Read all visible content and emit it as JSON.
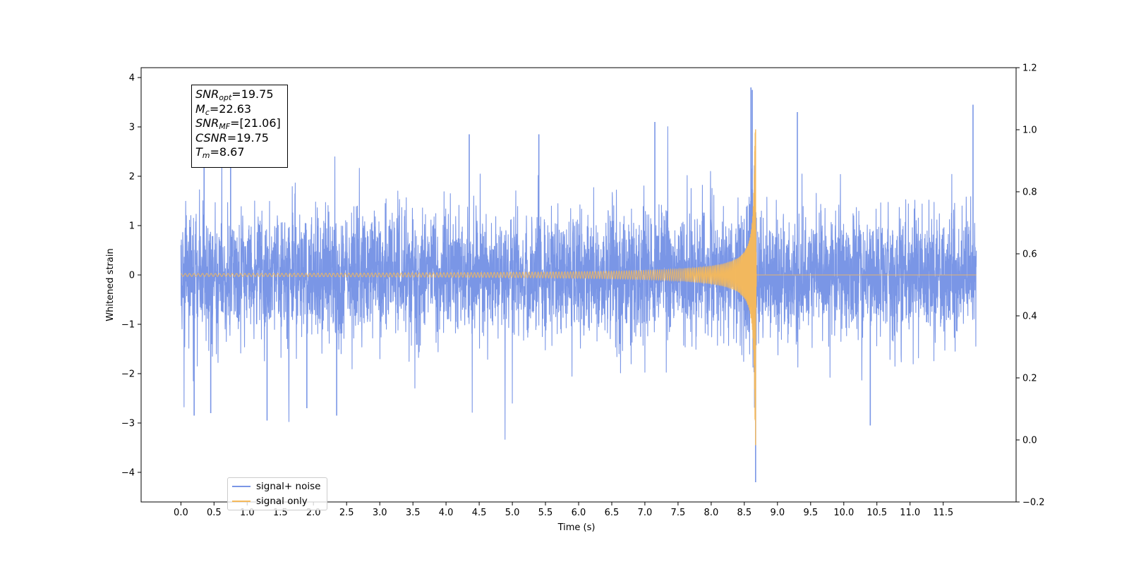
{
  "chart_data": {
    "type": "line",
    "xlabel": "Time (s)",
    "ylabel": "Whitened strain",
    "xlim": [
      -0.6,
      12.6
    ],
    "ylim": [
      -4.6,
      4.2
    ],
    "ylim_right": [
      -0.2,
      1.2
    ],
    "x_ticks": [
      "0.0",
      "0.5",
      "1.0",
      "1.5",
      "2.0",
      "2.5",
      "3.0",
      "3.5",
      "4.0",
      "4.5",
      "5.0",
      "5.5",
      "6.0",
      "6.5",
      "7.0",
      "7.5",
      "8.0",
      "8.5",
      "9.0",
      "9.5",
      "10.0",
      "10.5",
      "11.0",
      "11.5"
    ],
    "y_ticks_left": [
      "4",
      "3",
      "2",
      "1",
      "0",
      "−1",
      "−2",
      "−3",
      "−4"
    ],
    "y_ticks_right": [
      "1.2",
      "1.0",
      "0.8",
      "0.6",
      "0.4",
      "0.2",
      "0.0",
      "−0.2"
    ],
    "grid": false,
    "legend_position": "lower-left",
    "series": [
      {
        "name": "signal+ noise",
        "color": "#7a96e6",
        "x_range": [
          0.0,
          12.0
        ],
        "envelope_points": [
          {
            "x": 0.35,
            "y": 2.25
          },
          {
            "x": 0.2,
            "y": -2.85
          },
          {
            "x": 0.45,
            "y": -2.8
          },
          {
            "x": 0.75,
            "y": 2.4
          },
          {
            "x": 1.3,
            "y": -2.95
          },
          {
            "x": 1.9,
            "y": -2.7
          },
          {
            "x": 2.35,
            "y": -2.85
          },
          {
            "x": 4.35,
            "y": 2.85
          },
          {
            "x": 5.4,
            "y": 2.85
          },
          {
            "x": 7.15,
            "y": 3.1
          },
          {
            "x": 8.6,
            "y": 3.8
          },
          {
            "x": 8.62,
            "y": 3.75
          },
          {
            "x": 8.67,
            "y": -4.2
          },
          {
            "x": 9.3,
            "y": 3.3
          },
          {
            "x": 10.4,
            "y": -3.05
          },
          {
            "x": 11.95,
            "y": 3.45
          }
        ]
      },
      {
        "name": "signal only",
        "color": "#f5b95a",
        "merger_time": 8.67,
        "peak_positive": 2.95,
        "peak_negative": -3.45,
        "early_amplitude": 0.03
      }
    ],
    "annotations": {
      "snr_opt": {
        "label": "SNR",
        "sub": "opt",
        "value": "=19.75"
      },
      "mc": {
        "label": "M",
        "sub": "c",
        "value": "=22.63"
      },
      "snr_mf": {
        "label": "SNR",
        "sub": "MF",
        "value": "=[21.06]"
      },
      "csnr": {
        "label": "CSNR",
        "value": "=19.75"
      },
      "tm": {
        "label": "T",
        "sub": "m",
        "value": "=8.67"
      }
    }
  }
}
